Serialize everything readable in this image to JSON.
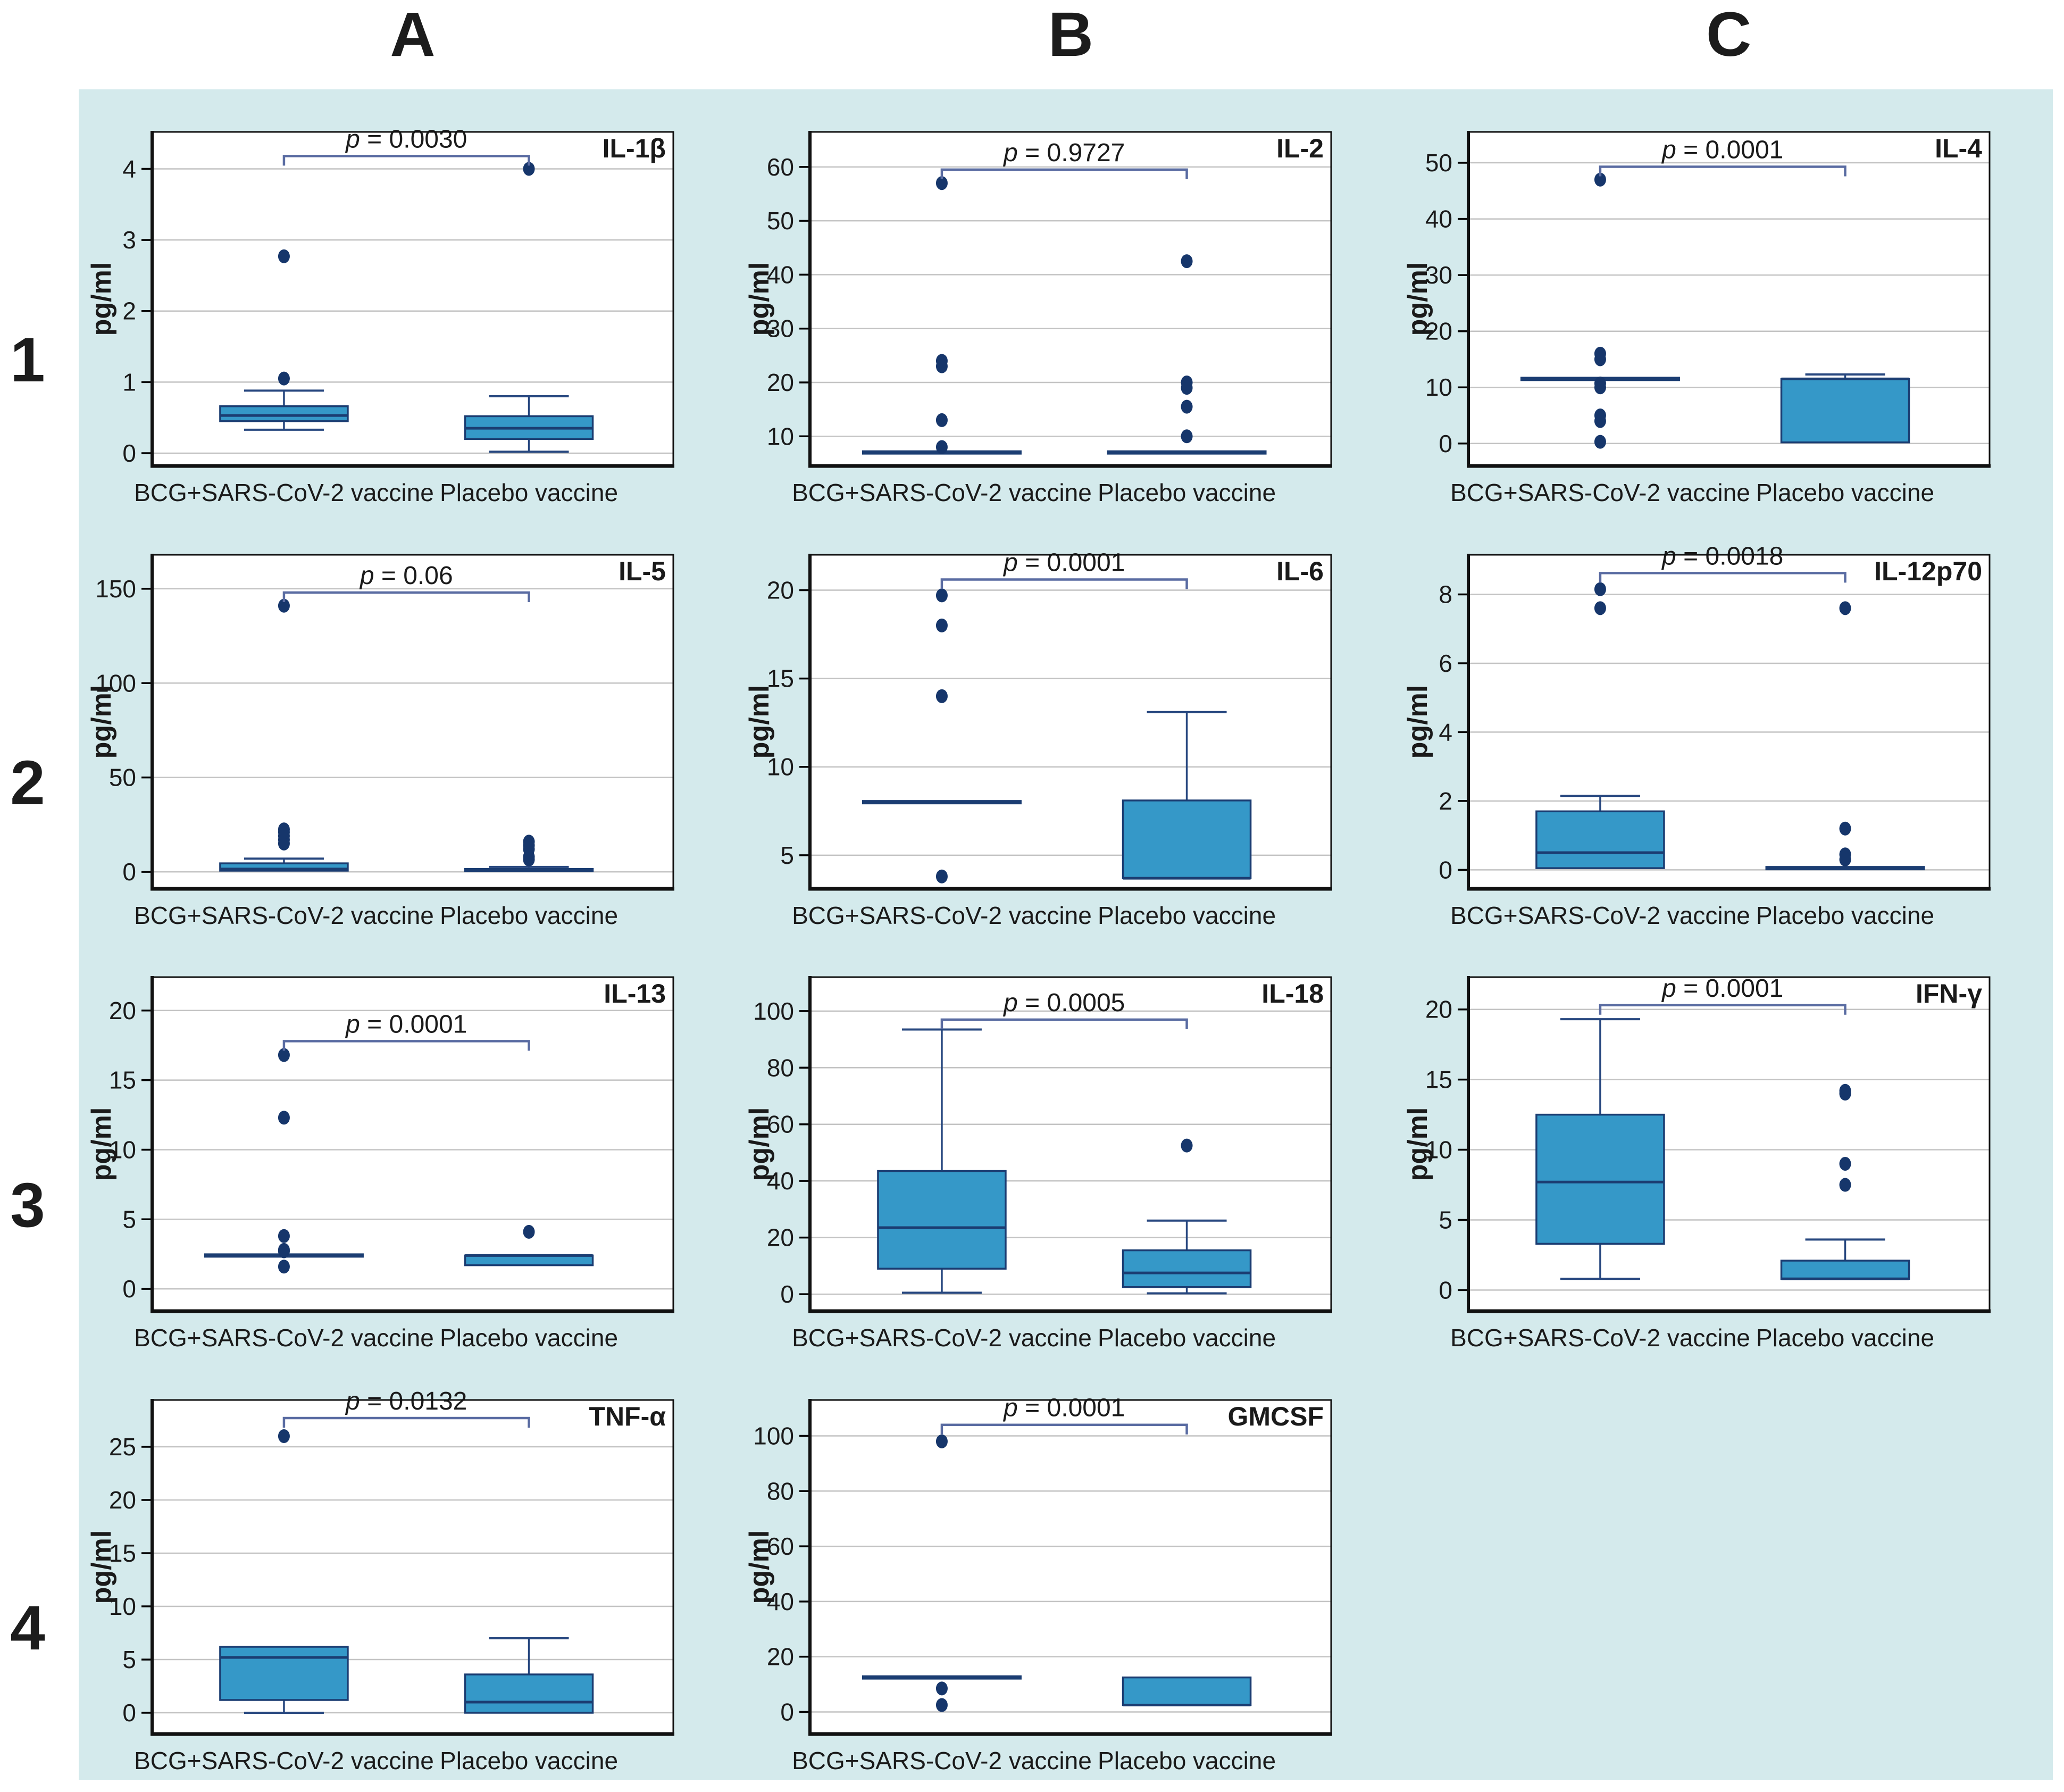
{
  "figure": {
    "kind": "multi-panel cytokine box plot figure",
    "y_axis_unit": "pg/ml"
  },
  "layout": {
    "column_headers": [
      "A",
      "B",
      "C"
    ],
    "row_headers": [
      "1",
      "2",
      "3",
      "4"
    ]
  },
  "style": {
    "canvas_bg": "#d4eaec",
    "panel_bg": "#ffffff",
    "box_fill": "#3598c8",
    "box_stroke": "#1b3d72",
    "median_color": "#1b3d72",
    "whisker_color": "#27477f",
    "dot_color": "#16366b",
    "grid_color": "#c3c3c3",
    "border_color": "#111111",
    "bracket_color": "#5a6ca2",
    "text_color": "#1a1a1a"
  },
  "chart_data": [
    {
      "type": "box",
      "row": 1,
      "col": "A",
      "title": "IL-1β",
      "p_label": "p = 0.0030",
      "ylabel": "pg/ml",
      "yticks": [
        0,
        1,
        2,
        3,
        4
      ],
      "ylim": [
        -0.18,
        4.52
      ],
      "bracket_y": 4.18,
      "categories": [
        "BCG+SARS-CoV-2 vaccine",
        "Placebo vaccine"
      ],
      "groups": [
        {
          "whisker_low": 0.33,
          "q1": 0.45,
          "median": 0.53,
          "q3": 0.66,
          "whisker_high": 0.88,
          "outliers": [
            1.05,
            2.77
          ]
        },
        {
          "whisker_low": 0.02,
          "q1": 0.2,
          "median": 0.35,
          "q3": 0.52,
          "whisker_high": 0.8,
          "outliers": [
            4.0
          ]
        }
      ]
    },
    {
      "type": "box",
      "row": 1,
      "col": "B",
      "title": "IL-2",
      "p_label": "p = 0.9727",
      "ylabel": "pg/ml",
      "yticks": [
        10,
        20,
        30,
        40,
        50,
        60
      ],
      "ylim": [
        4.5,
        66.5
      ],
      "bracket_y": 59.5,
      "categories": [
        "BCG+SARS-CoV-2 vaccine",
        "Placebo vaccine"
      ],
      "groups": [
        {
          "whisker_low": 7,
          "q1": 7,
          "median": 7,
          "q3": 7,
          "whisker_high": 7,
          "outliers": [
            8,
            13,
            23,
            24,
            57
          ]
        },
        {
          "whisker_low": 7,
          "q1": 7,
          "median": 7,
          "q3": 7,
          "whisker_high": 7,
          "outliers": [
            10,
            15.5,
            19,
            20,
            42.5
          ]
        }
      ]
    },
    {
      "type": "box",
      "row": 1,
      "col": "C",
      "title": "IL-4",
      "p_label": "p = 0.0001",
      "ylabel": "pg/ml",
      "yticks": [
        0,
        10,
        20,
        30,
        40,
        50
      ],
      "ylim": [
        -4,
        55.5
      ],
      "bracket_y": 49.3,
      "categories": [
        "BCG+SARS-CoV-2 vaccine",
        "Placebo vaccine"
      ],
      "groups": [
        {
          "whisker_low": 11.5,
          "q1": 11.5,
          "median": 11.5,
          "q3": 11.5,
          "whisker_high": 11.5,
          "outliers": [
            0.3,
            4,
            5,
            10,
            10.7,
            15,
            16,
            47
          ]
        },
        {
          "whisker_low": 0.2,
          "q1": 0.2,
          "median": 11.5,
          "q3": 11.5,
          "whisker_high": 12.3,
          "outliers": []
        }
      ]
    },
    {
      "type": "box",
      "row": 2,
      "col": "A",
      "title": "IL-5",
      "p_label": "p = 0.06",
      "ylabel": "pg/ml",
      "yticks": [
        0,
        50,
        100,
        150
      ],
      "ylim": [
        -9,
        168
      ],
      "bracket_y": 148,
      "categories": [
        "BCG+SARS-CoV-2 vaccine",
        "Placebo vaccine"
      ],
      "groups": [
        {
          "whisker_low": 0.3,
          "q1": 0.6,
          "median": 1.5,
          "q3": 4.5,
          "whisker_high": 7,
          "outliers": [
            15,
            17,
            19,
            21,
            22.5,
            141
          ]
        },
        {
          "whisker_low": 0.2,
          "q1": 0.4,
          "median": 0.9,
          "q3": 1.5,
          "whisker_high": 2.6,
          "outliers": [
            6.5,
            8,
            12,
            14,
            16
          ]
        }
      ]
    },
    {
      "type": "box",
      "row": 2,
      "col": "B",
      "title": "IL-6",
      "p_label": "p = 0.0001",
      "ylabel": "pg/ml",
      "yticks": [
        5,
        10,
        15,
        20
      ],
      "ylim": [
        3.1,
        22
      ],
      "bracket_y": 20.6,
      "categories": [
        "BCG+SARS-CoV-2 vaccine",
        "Placebo vaccine"
      ],
      "groups": [
        {
          "whisker_low": 8,
          "q1": 8,
          "median": 8,
          "q3": 8,
          "whisker_high": 8,
          "outliers": [
            3.8,
            14,
            18,
            19.7
          ]
        },
        {
          "whisker_low": 3.7,
          "q1": 3.7,
          "median": 3.7,
          "q3": 8.1,
          "whisker_high": 13.1,
          "outliers": []
        }
      ]
    },
    {
      "type": "box",
      "row": 2,
      "col": "C",
      "title": "IL-12p70",
      "p_label": "p = 0.0018",
      "ylabel": "pg/ml",
      "yticks": [
        0,
        2,
        4,
        6,
        8
      ],
      "ylim": [
        -0.55,
        9.15
      ],
      "bracket_y": 8.62,
      "categories": [
        "BCG+SARS-CoV-2 vaccine",
        "Placebo vaccine"
      ],
      "groups": [
        {
          "whisker_low": 0.05,
          "q1": 0.05,
          "median": 0.5,
          "q3": 1.7,
          "whisker_high": 2.15,
          "outliers": [
            7.6,
            8.15
          ]
        },
        {
          "whisker_low": 0.05,
          "q1": 0.05,
          "median": 0.05,
          "q3": 0.05,
          "whisker_high": 0.05,
          "outliers": [
            0.3,
            0.45,
            1.2,
            7.6
          ]
        }
      ]
    },
    {
      "type": "box",
      "row": 3,
      "col": "A",
      "title": "IL-13",
      "p_label": "p = 0.0001",
      "ylabel": "pg/ml",
      "yticks": [
        0,
        5,
        10,
        15,
        20
      ],
      "ylim": [
        -1.6,
        22.4
      ],
      "bracket_y": 17.8,
      "categories": [
        "BCG+SARS-CoV-2 vaccine",
        "Placebo vaccine"
      ],
      "groups": [
        {
          "whisker_low": 2.4,
          "q1": 2.4,
          "median": 2.4,
          "q3": 2.4,
          "whisker_high": 2.4,
          "outliers": [
            1.6,
            2.7,
            2.8,
            3.8,
            12.3,
            16.8
          ]
        },
        {
          "whisker_low": 1.7,
          "q1": 1.7,
          "median": 2.4,
          "q3": 2.4,
          "whisker_high": 2.4,
          "outliers": [
            4.1
          ]
        }
      ]
    },
    {
      "type": "box",
      "row": 3,
      "col": "B",
      "title": "IL-18",
      "p_label": "p = 0.0005",
      "ylabel": "pg/ml",
      "yticks": [
        0,
        20,
        40,
        60,
        80,
        100
      ],
      "ylim": [
        -6,
        112
      ],
      "bracket_y": 97,
      "categories": [
        "BCG+SARS-CoV-2 vaccine",
        "Placebo vaccine"
      ],
      "groups": [
        {
          "whisker_low": 0.5,
          "q1": 9,
          "median": 23.5,
          "q3": 43.5,
          "whisker_high": 93.5,
          "outliers": []
        },
        {
          "whisker_low": 0.3,
          "q1": 2.5,
          "median": 7.5,
          "q3": 15.5,
          "whisker_high": 26,
          "outliers": [
            52.5
          ]
        }
      ]
    },
    {
      "type": "box",
      "row": 3,
      "col": "C",
      "title": "IFN-γ",
      "p_label": "p = 0.0001",
      "ylabel": "pg/ml",
      "yticks": [
        0,
        5,
        10,
        15,
        20
      ],
      "ylim": [
        -1.5,
        22.3
      ],
      "bracket_y": 20.3,
      "categories": [
        "BCG+SARS-CoV-2 vaccine",
        "Placebo vaccine"
      ],
      "groups": [
        {
          "whisker_low": 0.8,
          "q1": 3.3,
          "median": 7.7,
          "q3": 12.5,
          "whisker_high": 19.3,
          "outliers": []
        },
        {
          "whisker_low": 0.8,
          "q1": 0.8,
          "median": 0.8,
          "q3": 2.1,
          "whisker_high": 3.6,
          "outliers": [
            7.5,
            9,
            14,
            14.2
          ]
        }
      ]
    },
    {
      "type": "box",
      "row": 4,
      "col": "A",
      "title": "TNF-α",
      "p_label": "p = 0.0132",
      "ylabel": "pg/ml",
      "yticks": [
        0,
        5,
        10,
        15,
        20,
        25
      ],
      "ylim": [
        -2,
        29.4
      ],
      "bracket_y": 27.7,
      "categories": [
        "BCG+SARS-CoV-2 vaccine",
        "Placebo vaccine"
      ],
      "groups": [
        {
          "whisker_low": 0,
          "q1": 1.2,
          "median": 5.2,
          "q3": 6.2,
          "whisker_high": 6.2,
          "outliers": [
            26
          ]
        },
        {
          "whisker_low": 0,
          "q1": 0,
          "median": 1.0,
          "q3": 3.6,
          "whisker_high": 7.0,
          "outliers": []
        }
      ]
    },
    {
      "type": "box",
      "row": 4,
      "col": "B",
      "title": "GMCSF",
      "p_label": "p = 0.0001",
      "ylabel": "pg/ml",
      "yticks": [
        0,
        20,
        40,
        60,
        80,
        100
      ],
      "ylim": [
        -8,
        113
      ],
      "bracket_y": 104,
      "categories": [
        "BCG+SARS-CoV-2 vaccine",
        "Placebo vaccine"
      ],
      "groups": [
        {
          "whisker_low": 12.5,
          "q1": 12.5,
          "median": 12.5,
          "q3": 12.5,
          "whisker_high": 12.5,
          "outliers": [
            2.5,
            8.5,
            98
          ]
        },
        {
          "whisker_low": 2.5,
          "q1": 2.5,
          "median": 2.5,
          "q3": 12.5,
          "whisker_high": 12.5,
          "outliers": []
        }
      ]
    }
  ]
}
